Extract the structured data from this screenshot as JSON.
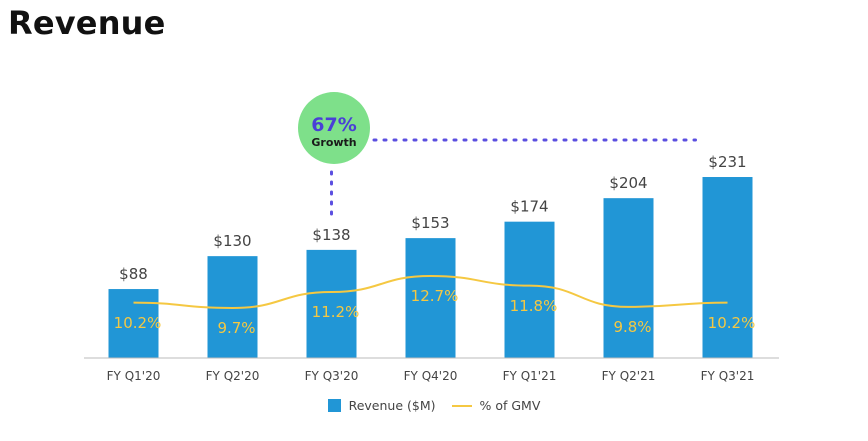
{
  "page": {
    "title": "Revenue"
  },
  "chart_data": {
    "type": "bar",
    "categories": [
      "FY Q1'20",
      "FY Q2'20",
      "FY Q3'20",
      "FY Q4'20",
      "FY Q1'21",
      "FY Q2'21",
      "FY Q3'21"
    ],
    "series": [
      {
        "name": "Revenue ($M)",
        "kind": "bar",
        "values": [
          88,
          130,
          138,
          153,
          174,
          204,
          231
        ],
        "labels": [
          "$88",
          "$130",
          "$138",
          "$153",
          "$174",
          "$204",
          "$231"
        ],
        "color": "#2196d6"
      },
      {
        "name": "% of GMV",
        "kind": "line",
        "values": [
          10.2,
          9.7,
          11.2,
          12.7,
          11.8,
          9.8,
          10.2
        ],
        "labels": [
          "10.2%",
          "9.7%",
          "11.2%",
          "12.7%",
          "11.8%",
          "9.8%",
          "10.2%"
        ],
        "color": "#f5c842"
      }
    ],
    "ylim": [
      0,
      260
    ],
    "grid": false,
    "legend": "bottom",
    "annotation": {
      "value": "67%",
      "label": "Growth",
      "from": "FY Q3'20",
      "to": "FY Q3'21",
      "circle_color": "#7ee08a",
      "value_color": "#4a3fd6",
      "connector_color": "#5b4fe0"
    }
  }
}
